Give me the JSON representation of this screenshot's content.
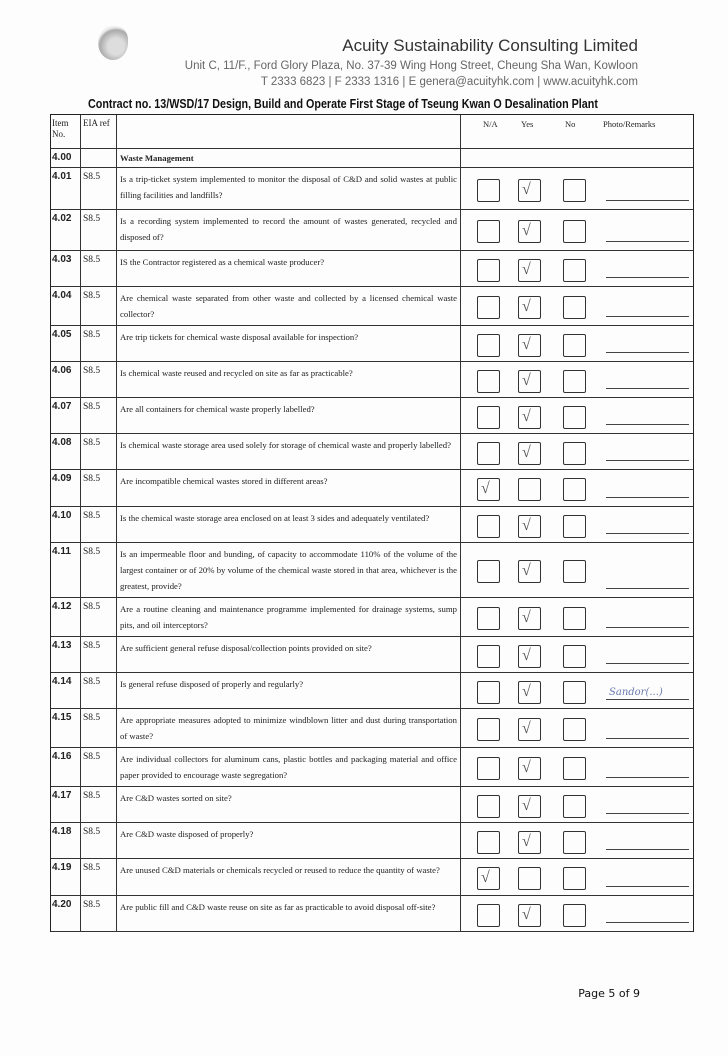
{
  "header": {
    "company": "Acuity Sustainability Consulting Limited",
    "address": "Unit C, 11/F., Ford Glory Plaza, No. 37-39 Wing Hong Street, Cheung Sha Wan, Kowloon",
    "contact": "T 2333 6823 | F 2333 1316 | E genera@acuityhk.com | www.acuityhk.com"
  },
  "contract_title": "Contract no. 13/WSD/17 Design, Build and Operate First Stage of Tseung Kwan O Desalination Plant",
  "columns": {
    "item": "Item No.",
    "eia": "EIA ref",
    "na": "N/A",
    "yes": "Yes",
    "no": "No",
    "remarks": "Photo/Remarks"
  },
  "section": {
    "item": "4.00",
    "title": "Waste Management"
  },
  "rows": [
    {
      "item": "4.01",
      "eia": "S8.5",
      "q": "Is a trip-ticket system implemented to monitor the disposal of C&D and solid wastes at public filling facilities and landfills?",
      "answer": "yes"
    },
    {
      "item": "4.02",
      "eia": "S8.5",
      "q": "Is a recording system implemented to record the amount of wastes generated, recycled and disposed of?",
      "answer": "yes"
    },
    {
      "item": "4.03",
      "eia": "S8.5",
      "q": "IS the Contractor registered as a chemical waste producer?",
      "answer": "yes"
    },
    {
      "item": "4.04",
      "eia": "S8.5",
      "q": "Are chemical waste separated from other waste and collected by a licensed chemical waste collector?",
      "answer": "yes"
    },
    {
      "item": "4.05",
      "eia": "S8.5",
      "q": "Are trip tickets for chemical waste disposal available for inspection?",
      "answer": "yes"
    },
    {
      "item": "4.06",
      "eia": "S8.5",
      "q": "Is chemical waste reused and recycled on site as far as practicable?",
      "answer": "yes"
    },
    {
      "item": "4.07",
      "eia": "S8.5",
      "q": "Are all containers for chemical waste properly labelled?",
      "answer": "yes"
    },
    {
      "item": "4.08",
      "eia": "S8.5",
      "q": "Is chemical waste storage area used solely for storage of chemical waste and properly labelled?",
      "answer": "yes"
    },
    {
      "item": "4.09",
      "eia": "S8.5",
      "q": "Are incompatible chemical wastes stored in different areas?",
      "answer": "na"
    },
    {
      "item": "4.10",
      "eia": "S8.5",
      "q": "Is the chemical waste storage area enclosed on at least 3 sides and adequately ventilated?",
      "answer": "yes"
    },
    {
      "item": "4.11",
      "eia": "S8.5",
      "q": "Is an impermeable floor and bunding, of capacity to accommodate 110% of the volume of the largest container or of 20% by volume of the chemical waste stored in that area, whichever is the greatest, provide?",
      "answer": "yes"
    },
    {
      "item": "4.12",
      "eia": "S8.5",
      "q": "Are a routine cleaning and maintenance programme implemented for drainage systems, sump pits, and oil interceptors?",
      "answer": "yes"
    },
    {
      "item": "4.13",
      "eia": "S8.5",
      "q": "Are sufficient general refuse disposal/collection points provided on site?",
      "answer": "yes"
    },
    {
      "item": "4.14",
      "eia": "S8.5",
      "q": "Is general refuse disposed of properly and regularly?",
      "answer": "yes",
      "remark": "Sandor(...)"
    },
    {
      "item": "4.15",
      "eia": "S8.5",
      "q": "Are appropriate measures adopted to minimize windblown litter and dust during transportation of waste?",
      "answer": "yes"
    },
    {
      "item": "4.16",
      "eia": "S8.5",
      "q": "Are individual collectors for aluminum cans, plastic bottles and packaging material and office paper provided to encourage waste segregation?",
      "answer": "yes"
    },
    {
      "item": "4.17",
      "eia": "S8.5",
      "q": "Are C&D wastes sorted on site?",
      "answer": "yes"
    },
    {
      "item": "4.18",
      "eia": "S8.5",
      "q": "Are C&D waste disposed of properly?",
      "answer": "yes"
    },
    {
      "item": "4.19",
      "eia": "S8.5",
      "q": "Are unused C&D materials or chemicals recycled or reused to reduce the quantity of waste?",
      "answer": "na"
    },
    {
      "item": "4.20",
      "eia": "S8.5",
      "q": "Are public fill and C&D waste reuse on site as far as practicable to avoid disposal off-site?",
      "answer": "yes"
    }
  ],
  "footer": {
    "page": "Page 5 of 9"
  }
}
